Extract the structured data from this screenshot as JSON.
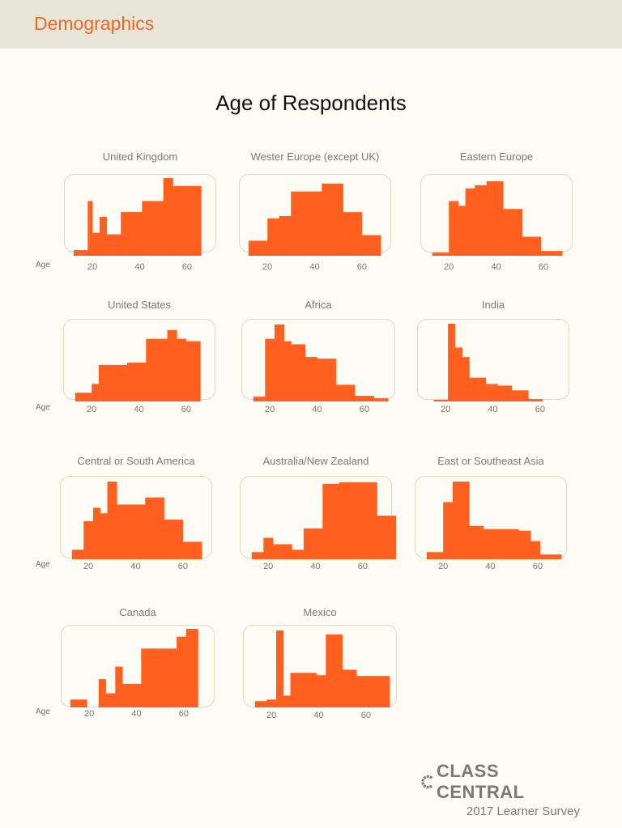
{
  "header": {
    "section": "Demographics"
  },
  "page_title": "Age of Respondents",
  "axis_label": "Age",
  "colors": {
    "bar": "#ff5f1f",
    "header_band": "#e7e6d8",
    "section_title": "#f26522"
  },
  "brand": {
    "name": "CLASS CENTRAL",
    "subtitle": "2017 Learner Survey",
    "logo_icon": "partial-circle-icon"
  },
  "chart_data": [
    {
      "type": "bar",
      "title": "United Kingdom",
      "xlabel": "Age",
      "x_ticks": [
        20,
        40,
        60
      ],
      "xlim": [
        10,
        70
      ],
      "edges": [
        12,
        18,
        20,
        23,
        26,
        28,
        32,
        37,
        41,
        45,
        50,
        54,
        59,
        66
      ],
      "values": [
        0.07,
        0.69,
        0.29,
        0.49,
        0.27,
        0.27,
        0.55,
        0.55,
        0.69,
        0.69,
        0.98,
        0.88,
        0.88
      ]
    },
    {
      "type": "bar",
      "title": "Wester Europe (except UK)",
      "xlabel": "",
      "x_ticks": [
        20,
        40,
        60
      ],
      "xlim": [
        10,
        70
      ],
      "edges": [
        12,
        20,
        25,
        30,
        35,
        43,
        48,
        52,
        60,
        68
      ],
      "values": [
        0.19,
        0.47,
        0.5,
        0.81,
        0.81,
        0.91,
        0.91,
        0.55,
        0.26
      ]
    },
    {
      "type": "bar",
      "title": "Eastern Europe",
      "xlabel": "",
      "x_ticks": [
        20,
        40,
        60
      ],
      "xlim": [
        10,
        70
      ],
      "edges": [
        13,
        20,
        24,
        27,
        31,
        36,
        43,
        51,
        59,
        68
      ],
      "values": [
        0.04,
        0.69,
        0.63,
        0.85,
        0.89,
        0.94,
        0.59,
        0.24,
        0.06
      ]
    },
    {
      "type": "bar",
      "title": "United States",
      "xlabel": "Age",
      "x_ticks": [
        20,
        40,
        60
      ],
      "xlim": [
        10,
        70
      ],
      "edges": [
        13,
        20,
        23,
        26,
        35,
        43,
        52,
        56,
        60,
        66
      ],
      "values": [
        0.11,
        0.22,
        0.46,
        0.46,
        0.49,
        0.79,
        0.9,
        0.79,
        0.76
      ]
    },
    {
      "type": "bar",
      "title": "Africa",
      "xlabel": "",
      "x_ticks": [
        20,
        40,
        60
      ],
      "xlim": [
        10,
        70
      ],
      "edges": [
        13,
        18,
        22,
        26,
        29,
        35,
        40,
        48,
        56,
        64,
        70
      ],
      "values": [
        0.06,
        0.79,
        0.97,
        0.76,
        0.72,
        0.56,
        0.54,
        0.21,
        0.07,
        0.04
      ]
    },
    {
      "type": "bar",
      "title": "India",
      "xlabel": "",
      "x_ticks": [
        20,
        40,
        60
      ],
      "xlim": [
        10,
        70
      ],
      "edges": [
        15,
        21,
        24,
        27,
        30,
        33,
        37,
        42,
        48,
        55,
        61
      ],
      "values": [
        0.02,
        0.98,
        0.68,
        0.56,
        0.3,
        0.3,
        0.22,
        0.2,
        0.14,
        0.03
      ]
    },
    {
      "type": "bar",
      "title": "Central or South America",
      "xlabel": "Age",
      "x_ticks": [
        20,
        40,
        60
      ],
      "xlim": [
        10,
        70
      ],
      "edges": [
        13,
        18,
        22,
        25,
        28,
        32,
        37,
        44,
        52,
        60,
        68
      ],
      "values": [
        0.12,
        0.48,
        0.65,
        0.58,
        0.98,
        0.69,
        0.69,
        0.78,
        0.5,
        0.22
      ]
    },
    {
      "type": "bar",
      "title": "Australia/New Zealand",
      "xlabel": "",
      "x_ticks": [
        20,
        40,
        60
      ],
      "xlim": [
        10,
        70
      ],
      "edges": [
        13,
        18,
        22,
        26,
        30,
        35,
        43,
        50,
        56,
        66,
        74
      ],
      "values": [
        0.09,
        0.27,
        0.19,
        0.19,
        0.12,
        0.39,
        0.95,
        0.97,
        0.97,
        0.55
      ]
    },
    {
      "type": "bar",
      "title": "East or  Southeast Asia",
      "xlabel": "",
      "x_ticks": [
        20,
        40,
        60
      ],
      "xlim": [
        10,
        70
      ],
      "edges": [
        13,
        20,
        24,
        27,
        31,
        37,
        44,
        52,
        57,
        61,
        70
      ],
      "values": [
        0.09,
        0.72,
        0.98,
        0.98,
        0.42,
        0.38,
        0.38,
        0.36,
        0.23,
        0.06
      ]
    },
    {
      "type": "bar",
      "title": "Canada",
      "xlabel": "Age",
      "x_ticks": [
        20,
        40,
        60
      ],
      "xlim": [
        10,
        70
      ],
      "edges": [
        12,
        16,
        19,
        24,
        27,
        31,
        34,
        39,
        42,
        48,
        57,
        61,
        66
      ],
      "values": [
        0.1,
        0.1,
        0.0,
        0.36,
        0.18,
        0.52,
        0.3,
        0.3,
        0.75,
        0.75,
        0.9,
        1.0
      ]
    },
    {
      "type": "bar",
      "title": "Mexico",
      "xlabel": "",
      "x_ticks": [
        20,
        40,
        60
      ],
      "xlim": [
        10,
        70
      ],
      "edges": [
        13,
        18,
        22,
        25,
        28,
        31,
        39,
        43,
        50,
        56,
        60,
        70
      ],
      "values": [
        0.08,
        0.1,
        0.98,
        0.15,
        0.44,
        0.44,
        0.41,
        0.93,
        0.48,
        0.4,
        0.4
      ]
    }
  ]
}
